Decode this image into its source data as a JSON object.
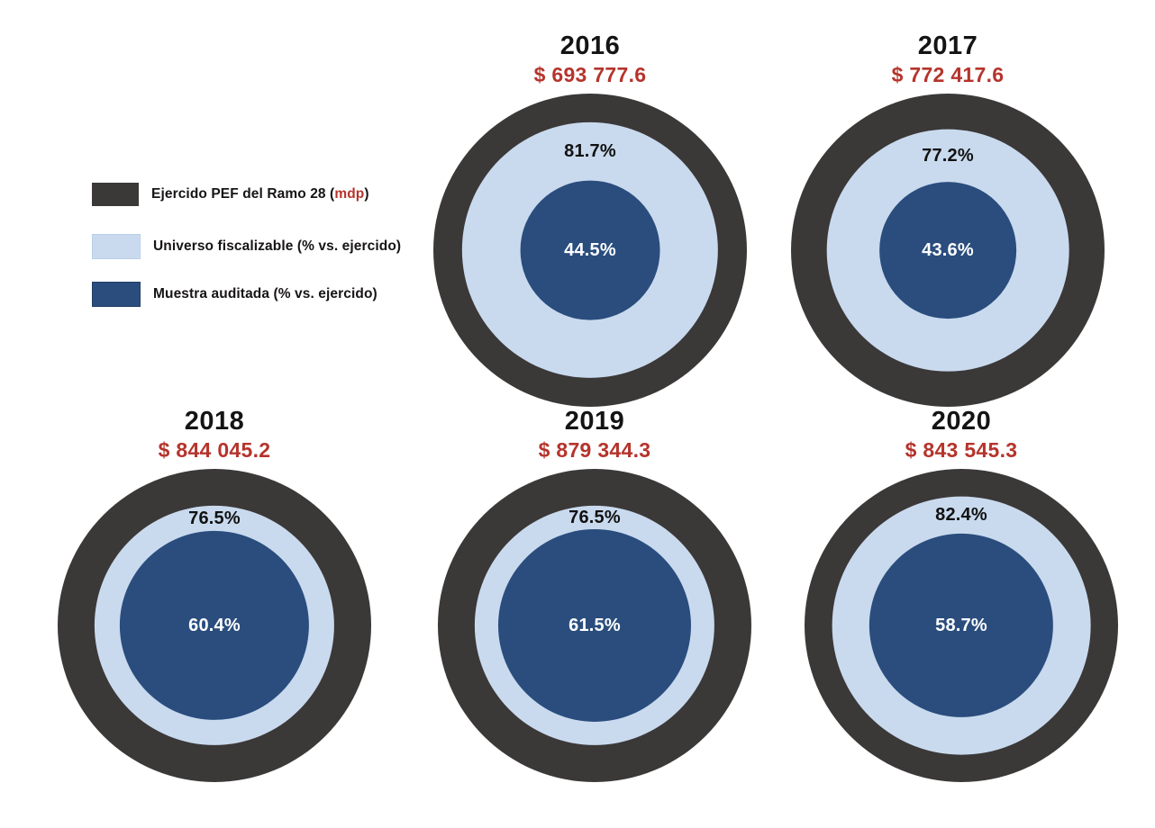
{
  "colors": {
    "ejercido_ring": "#3b3838",
    "universo_ring": "#c9daee",
    "muestra_ring": "#2a4d7e",
    "accent_red": "#b5342c",
    "background": "#ffffff",
    "text_dark": "#141414",
    "pct_inner_text": "#ffffff"
  },
  "legend": {
    "items": [
      {
        "name": "ejercido",
        "label_prefix": "Ejercido PEF del Ramo 28 (",
        "label_highlight": "mdp",
        "label_suffix": ")",
        "color": "#3b3838"
      },
      {
        "name": "universo",
        "label": "Universo fiscalizable (% vs. ejercido)",
        "color": "#c9daee"
      },
      {
        "name": "muestra",
        "label": "Muestra auditada (% vs. ejercido)",
        "color": "#2a4d7e"
      }
    ]
  },
  "chart_data": {
    "type": "concentric-circles",
    "title": "",
    "unit": "mdp",
    "radius_encoding": "circle radius proportional to percentage of Ejercido PEF (outer ring = 100%)",
    "series_labels": [
      "Ejercido PEF del Ramo 28 (mdp)",
      "Universo fiscalizable (% vs. ejercido)",
      "Muestra auditada (% vs. ejercido)"
    ],
    "years": [
      {
        "year": "2016",
        "ejercido_mdp": "$ 693 777.6",
        "ejercido_value": 693777.6,
        "universo_pct": 81.7,
        "muestra_pct": 44.5,
        "universo_label": "81.7%",
        "muestra_label": "44.5%"
      },
      {
        "year": "2017",
        "ejercido_mdp": "$ 772 417.6",
        "ejercido_value": 772417.6,
        "universo_pct": 77.2,
        "muestra_pct": 43.6,
        "universo_label": "77.2%",
        "muestra_label": "43.6%"
      },
      {
        "year": "2018",
        "ejercido_mdp": "$ 844 045.2",
        "ejercido_value": 844045.2,
        "universo_pct": 76.5,
        "muestra_pct": 60.4,
        "universo_label": "76.5%",
        "muestra_label": "60.4%"
      },
      {
        "year": "2019",
        "ejercido_mdp": "$ 879 344.3",
        "ejercido_value": 879344.3,
        "universo_pct": 76.5,
        "muestra_pct": 61.5,
        "universo_label": "76.5%",
        "muestra_label": "61.5%"
      },
      {
        "year": "2020",
        "ejercido_mdp": "$ 843 545.3",
        "ejercido_value": 843545.3,
        "universo_pct": 82.4,
        "muestra_pct": 58.7,
        "universo_label": "82.4%",
        "muestra_label": "58.7%"
      }
    ]
  }
}
